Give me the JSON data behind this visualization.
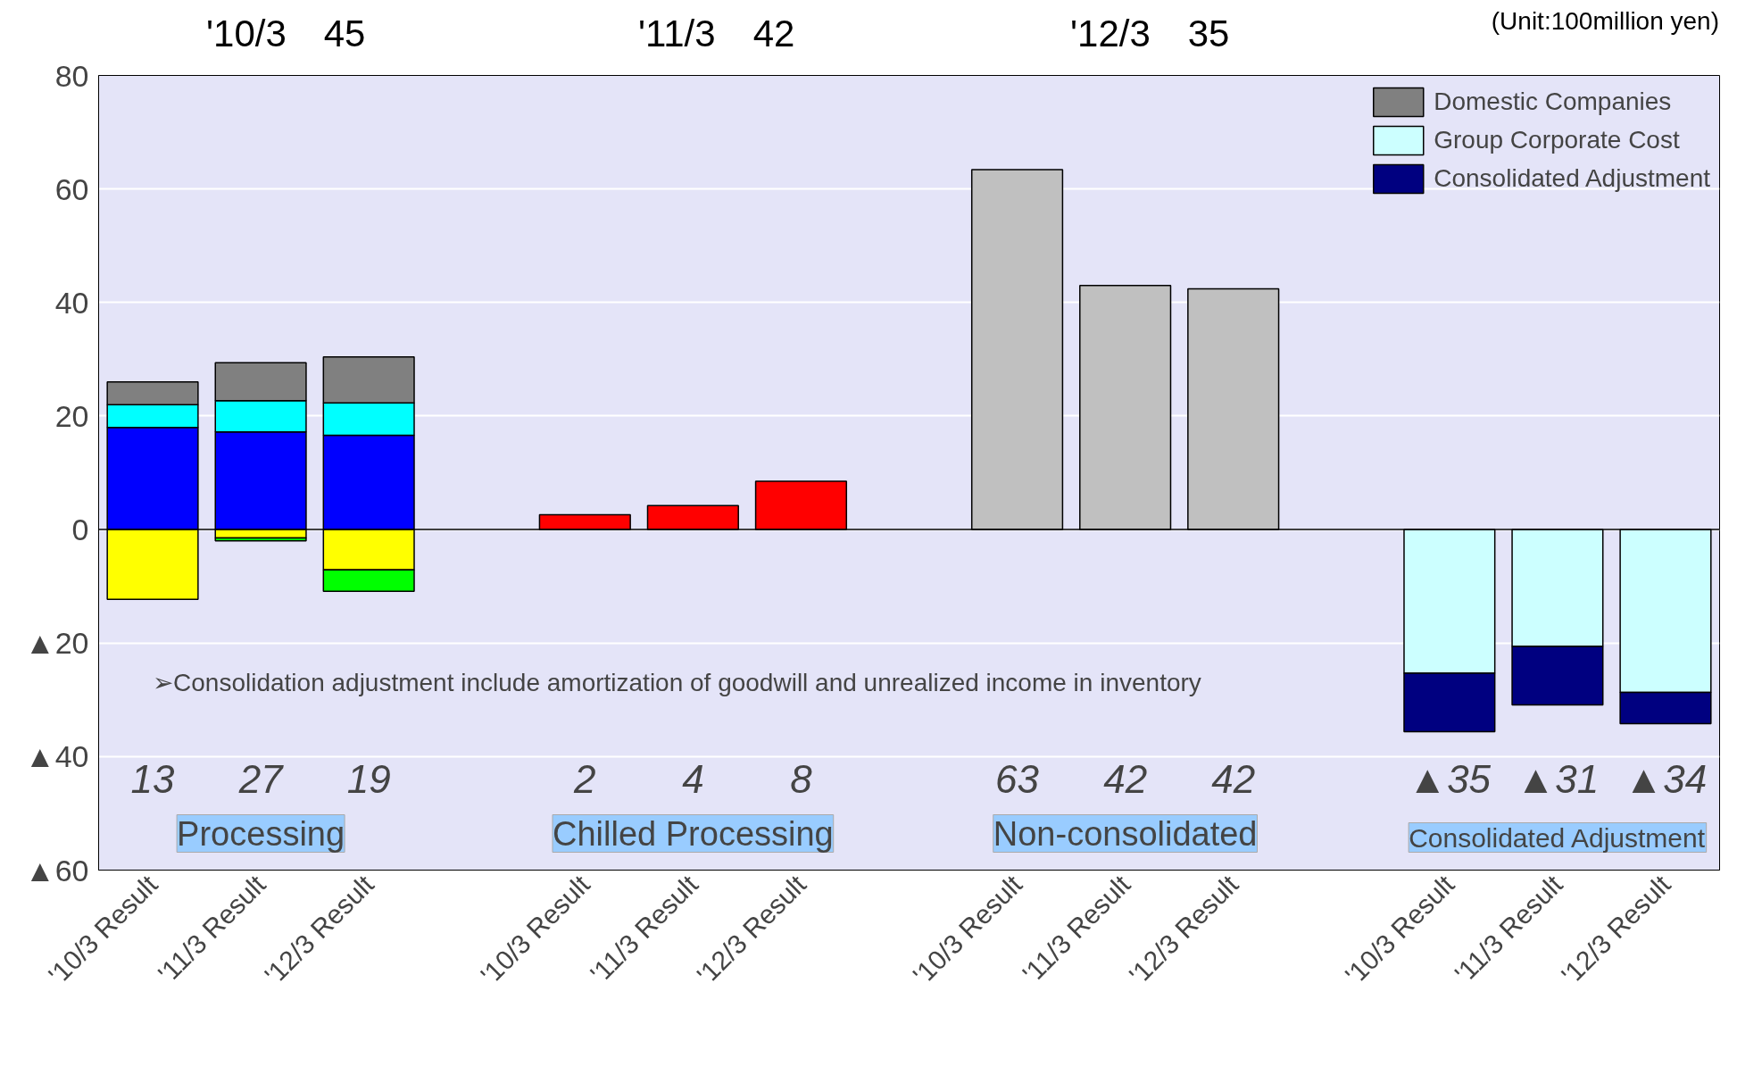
{
  "chart_data": {
    "type": "bar",
    "stacked": true,
    "categories": [
      "'10/3 Result",
      "'11/3 Result",
      "'12/3 Result",
      null,
      "'10/3 Result",
      "'11/3 Result",
      "'12/3 Result",
      null,
      "'10/3 Result",
      "'11/3 Result",
      "'12/3 Result",
      null,
      "'10/3 Result",
      "'11/3 Result",
      "'12/3 Result"
    ],
    "series": [
      {
        "color": "#0000ff",
        "values": [
          18,
          17.2,
          16.6,
          null,
          null,
          null,
          null,
          null,
          null,
          null,
          null,
          null,
          null,
          null,
          null
        ]
      },
      {
        "color": "#ffff00",
        "values": [
          -12.3,
          -1.5,
          -7.1,
          null,
          null,
          null,
          null,
          null,
          null,
          null,
          null,
          null,
          null,
          null,
          null
        ]
      },
      {
        "color": "#00ffff",
        "values": [
          4,
          5.5,
          5.7,
          null,
          null,
          null,
          null,
          null,
          null,
          null,
          null,
          null,
          null,
          null,
          null
        ]
      },
      {
        "color": "#00ff00",
        "values": [
          null,
          -0.5,
          -3.8,
          null,
          null,
          null,
          null,
          null,
          null,
          null,
          null,
          null,
          null,
          null,
          null
        ]
      },
      {
        "name": "Domestic Companies",
        "color": "#808080",
        "values": [
          4,
          6.7,
          8.1,
          null,
          null,
          null,
          null,
          null,
          null,
          null,
          null,
          null,
          null,
          null,
          null
        ]
      },
      {
        "color": "#ff0000",
        "values": [
          null,
          null,
          null,
          null,
          2.6,
          4.2,
          8.5,
          null,
          null,
          null,
          null,
          null,
          null,
          null,
          null
        ]
      },
      {
        "color": "#c0c0c0",
        "values": [
          null,
          null,
          null,
          null,
          null,
          null,
          null,
          null,
          63.4,
          43,
          42.4,
          null,
          null,
          null,
          null
        ]
      },
      {
        "name": "Group Corporate Cost",
        "color": "#ccffff",
        "values": [
          null,
          null,
          null,
          null,
          null,
          null,
          null,
          null,
          null,
          null,
          null,
          null,
          -25.3,
          -20.6,
          -28.7
        ]
      },
      {
        "name": "Consolidated Adjustment",
        "color": "#000080",
        "values": [
          null,
          null,
          null,
          null,
          null,
          null,
          null,
          null,
          null,
          null,
          null,
          null,
          -10.3,
          -10.3,
          -5.5
        ]
      }
    ],
    "ylim": [
      -60,
      80
    ],
    "yticks": [
      {
        "value": -60,
        "label": "▲60"
      },
      {
        "value": -40,
        "label": "▲40"
      },
      {
        "value": -20,
        "label": "▲20"
      },
      0,
      20,
      40,
      60,
      80
    ],
    "grid": "y",
    "legend": "top right",
    "annotations": [
      "'10/3　45",
      "'11/3　42",
      "'12/3　35",
      "(Unit:100million yen)",
      "➢Consolidation adjustment include amortization of goodwill and unrealized income in inventory",
      "Processing",
      "Chilled Processing",
      "Non-consolidated",
      "Consolidated Adjustment",
      "13",
      "27",
      "19",
      "2",
      "4",
      "8",
      "63",
      "42",
      "42",
      "▲35",
      "▲31",
      "▲34"
    ]
  }
}
